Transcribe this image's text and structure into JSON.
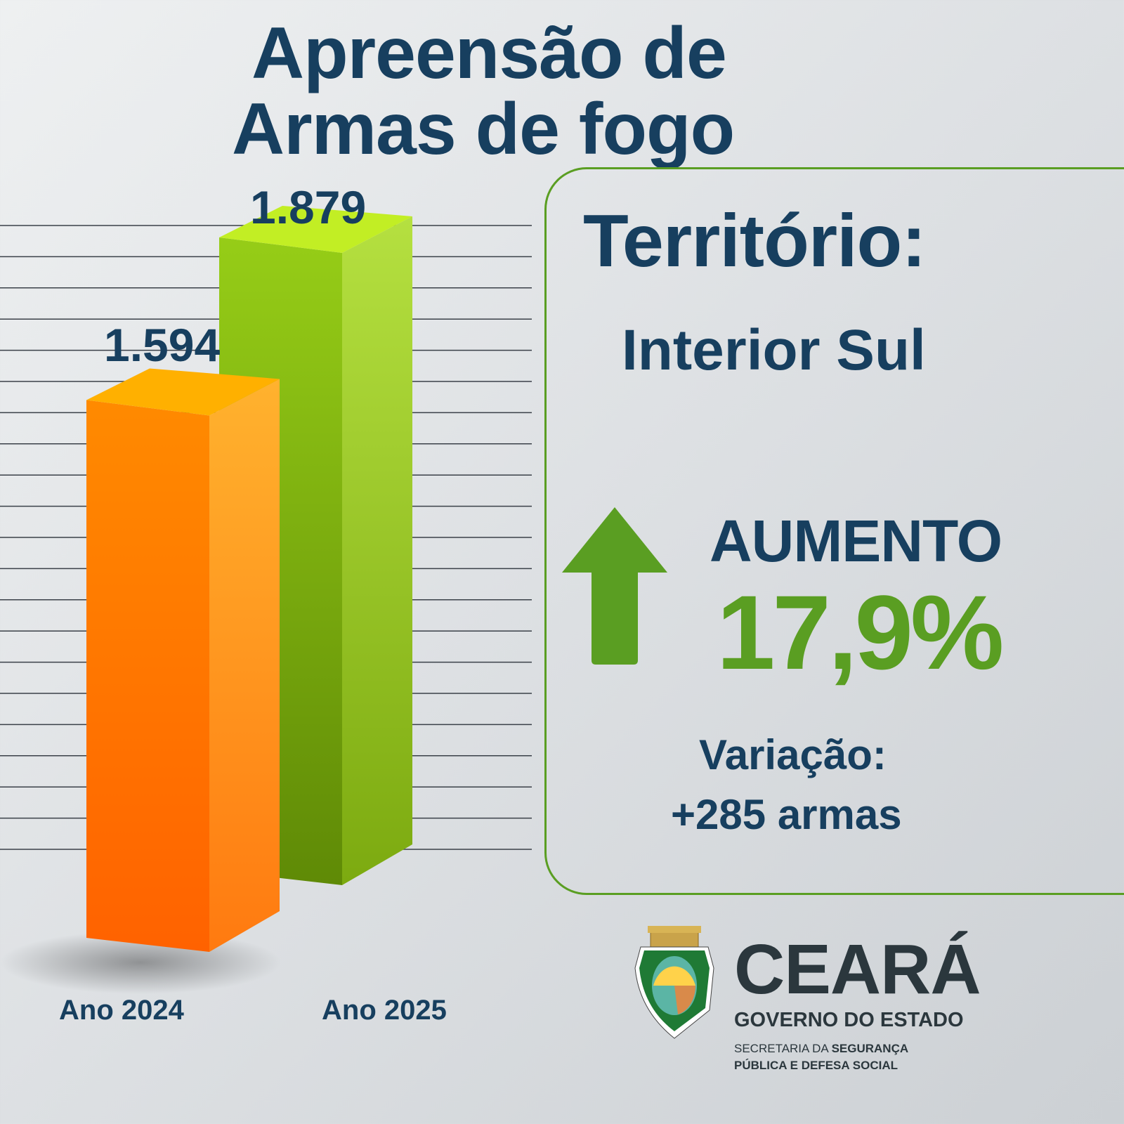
{
  "title": {
    "line1": "Apreensão de",
    "line2": "Armas de fogo"
  },
  "chart_data": {
    "type": "bar",
    "title": "Apreensão de Armas de fogo",
    "categories": [
      "Ano 2024",
      "Ano 2025"
    ],
    "values": [
      1594,
      1879
    ],
    "value_labels": [
      "1.594",
      "1.879"
    ],
    "colors": [
      "#ff7a00",
      "#8cc21a"
    ],
    "xlabel": "",
    "ylabel": "",
    "grid": true
  },
  "panel": {
    "territorio_label": "Território:",
    "territorio_value": "Interior Sul",
    "trend_label": "AUMENTO",
    "trend_value": "17,9%",
    "variacao_label": "Variação:",
    "variacao_value": "+285 armas",
    "accent": "#5a9e22"
  },
  "logo": {
    "name": "CEARÁ",
    "subtitle": "GOVERNO DO ESTADO",
    "secretaria_regular": "SECRETARIA DA ",
    "secretaria_bold": "SEGURANÇA",
    "secretaria_line2": "PÚBLICA E DEFESA SOCIAL"
  }
}
